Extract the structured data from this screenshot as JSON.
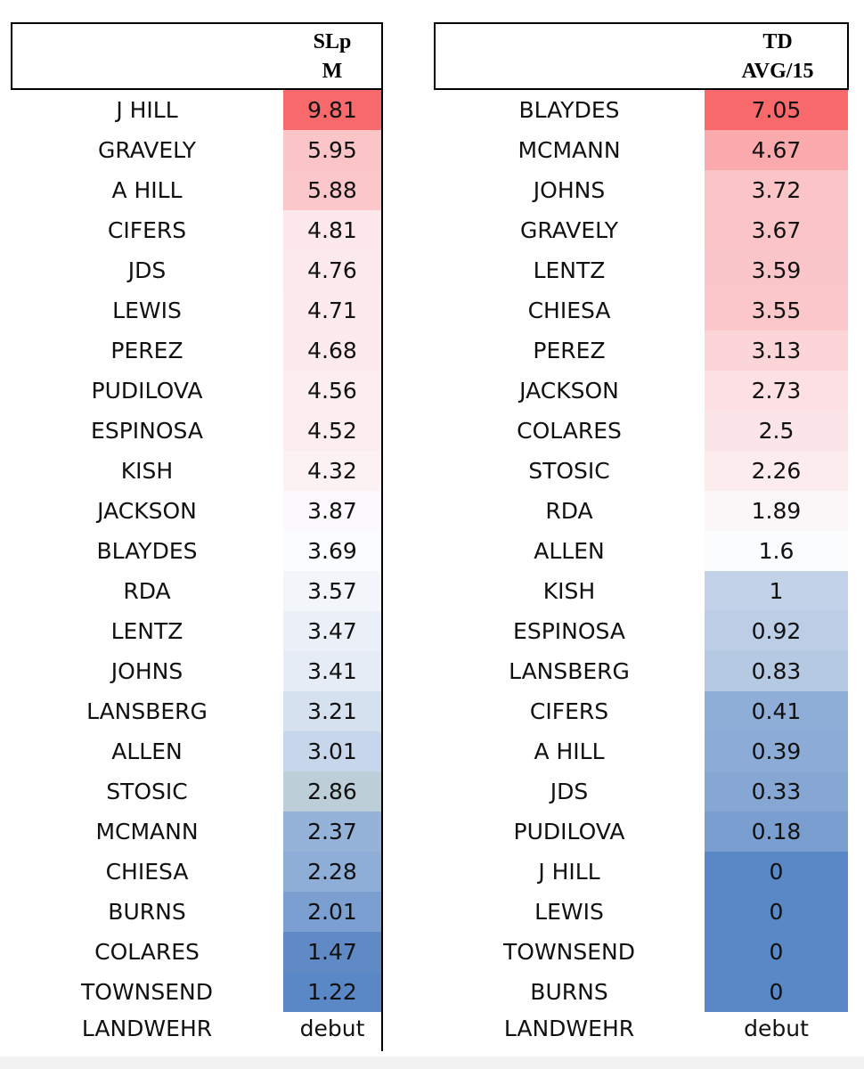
{
  "tables": [
    {
      "header_line1": "SLp",
      "header_line2": "M",
      "rows": [
        {
          "name": "J HILL",
          "value": "9.81",
          "bg": "#f8696b"
        },
        {
          "name": "GRAVELY",
          "value": "5.95",
          "bg": "#fbc5c8"
        },
        {
          "name": "A HILL",
          "value": "5.88",
          "bg": "#fbc7ca"
        },
        {
          "name": "CIFERS",
          "value": "4.81",
          "bg": "#fce8ea"
        },
        {
          "name": "JDS",
          "value": "4.76",
          "bg": "#fce9eb"
        },
        {
          "name": "LEWIS",
          "value": "4.71",
          "bg": "#fceaec"
        },
        {
          "name": "PEREZ",
          "value": "4.68",
          "bg": "#fceaec"
        },
        {
          "name": "PUDILOVA",
          "value": "4.56",
          "bg": "#fcedef"
        },
        {
          "name": "ESPINOSA",
          "value": "4.52",
          "bg": "#fcedef"
        },
        {
          "name": "KISH",
          "value": "4.32",
          "bg": "#fcf1f3"
        },
        {
          "name": "JACKSON",
          "value": "3.87",
          "bg": "#fbf9fb"
        },
        {
          "name": "BLAYDES",
          "value": "3.69",
          "bg": "#fafcfe"
        },
        {
          "name": "RDA",
          "value": "3.57",
          "bg": "#f2f5fa"
        },
        {
          "name": "LENTZ",
          "value": "3.47",
          "bg": "#eaeff8"
        },
        {
          "name": "JOHNS",
          "value": "3.41",
          "bg": "#e5ecf6"
        },
        {
          "name": "LANSBERG",
          "value": "3.21",
          "bg": "#d6e1f0"
        },
        {
          "name": "ALLEN",
          "value": "3.01",
          "bg": "#c7d6ea"
        },
        {
          "name": "STOSIC",
          "value": "2.86",
          "bg": "#bcced8"
        },
        {
          "name": "MCMANN",
          "value": "2.37",
          "bg": "#95b2d9"
        },
        {
          "name": "CHIESA",
          "value": "2.28",
          "bg": "#8eadd7"
        },
        {
          "name": "BURNS",
          "value": "2.01",
          "bg": "#7b9fd0"
        },
        {
          "name": "COLARES",
          "value": "1.47",
          "bg": "#5f8ac6"
        },
        {
          "name": "TOWNSEND",
          "value": "1.22",
          "bg": "#5a88c6"
        }
      ],
      "last_row": {
        "name": "LANDWEHR",
        "value": "debut"
      }
    },
    {
      "header_line1": "TD",
      "header_line2": "AVG/15",
      "rows": [
        {
          "name": "BLAYDES",
          "value": "7.05",
          "bg": "#f8696b"
        },
        {
          "name": "MCMANN",
          "value": "4.67",
          "bg": "#faa9ac"
        },
        {
          "name": "JOHNS",
          "value": "3.72",
          "bg": "#fbc4c7"
        },
        {
          "name": "GRAVELY",
          "value": "3.67",
          "bg": "#fbc5c8"
        },
        {
          "name": "LENTZ",
          "value": "3.59",
          "bg": "#fbc6c9"
        },
        {
          "name": "CHIESA",
          "value": "3.55",
          "bg": "#fbc7ca"
        },
        {
          "name": "PEREZ",
          "value": "3.13",
          "bg": "#fbd5d8"
        },
        {
          "name": "JACKSON",
          "value": "2.73",
          "bg": "#fce0e3"
        },
        {
          "name": "COLARES",
          "value": "2.5",
          "bg": "#fce5e8"
        },
        {
          "name": "STOSIC",
          "value": "2.26",
          "bg": "#fcecee"
        },
        {
          "name": "RDA",
          "value": "1.89",
          "bg": "#fbf6f8"
        },
        {
          "name": "ALLEN",
          "value": "1.6",
          "bg": "#fbfcfe"
        },
        {
          "name": "KISH",
          "value": "1",
          "bg": "#c2d2e8"
        },
        {
          "name": "ESPINOSA",
          "value": "0.92",
          "bg": "#bccee6"
        },
        {
          "name": "LANSBERG",
          "value": "0.83",
          "bg": "#b5c9e3"
        },
        {
          "name": "CIFERS",
          "value": "0.41",
          "bg": "#8eadd7"
        },
        {
          "name": "A HILL",
          "value": "0.39",
          "bg": "#8cabd6"
        },
        {
          "name": "JDS",
          "value": "0.33",
          "bg": "#86a7d4"
        },
        {
          "name": "PUDILOVA",
          "value": "0.18",
          "bg": "#799ecf"
        },
        {
          "name": "J HILL",
          "value": "0",
          "bg": "#5a88c6"
        },
        {
          "name": "LEWIS",
          "value": "0",
          "bg": "#5a88c6"
        },
        {
          "name": "TOWNSEND",
          "value": "0",
          "bg": "#5a88c6"
        },
        {
          "name": "BURNS",
          "value": "0",
          "bg": "#5a88c6"
        }
      ],
      "last_row": {
        "name": "LANDWEHR",
        "value": "debut"
      }
    }
  ]
}
